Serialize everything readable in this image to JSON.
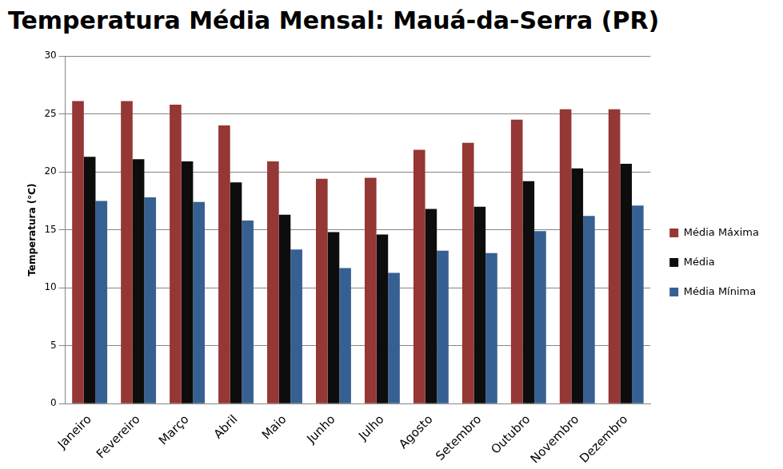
{
  "chart_data": {
    "type": "bar",
    "title": "Temperatura Média Mensal: Mauá-da-Serra (PR)",
    "y_label": "Temperatura (°C)",
    "categories": [
      "Janeiro",
      "Fevereiro",
      "Março",
      "Abril",
      "Maio",
      "Junho",
      "Julho",
      "Agosto",
      "Setembro",
      "Outubro",
      "Novembro",
      "Dezembro"
    ],
    "series": [
      {
        "name": "Média Máxima",
        "color": "#953735",
        "values": [
          26.1,
          26.1,
          25.8,
          24.0,
          20.9,
          19.4,
          19.5,
          21.9,
          22.5,
          24.5,
          25.4,
          25.4
        ]
      },
      {
        "name": "Média",
        "color": "#0d0d0d",
        "values": [
          21.3,
          21.1,
          20.9,
          19.1,
          16.3,
          14.8,
          14.6,
          16.8,
          17.0,
          19.2,
          20.3,
          20.7
        ]
      },
      {
        "name": "Média Mínima",
        "color": "#376092",
        "values": [
          17.5,
          17.8,
          17.4,
          15.8,
          13.3,
          11.7,
          11.3,
          13.2,
          13.0,
          14.9,
          16.2,
          17.1
        ]
      }
    ],
    "ylim": [
      0,
      30
    ],
    "yticks": [
      0,
      5,
      10,
      15,
      20,
      25,
      30
    ],
    "grid": true,
    "legend": "right"
  }
}
